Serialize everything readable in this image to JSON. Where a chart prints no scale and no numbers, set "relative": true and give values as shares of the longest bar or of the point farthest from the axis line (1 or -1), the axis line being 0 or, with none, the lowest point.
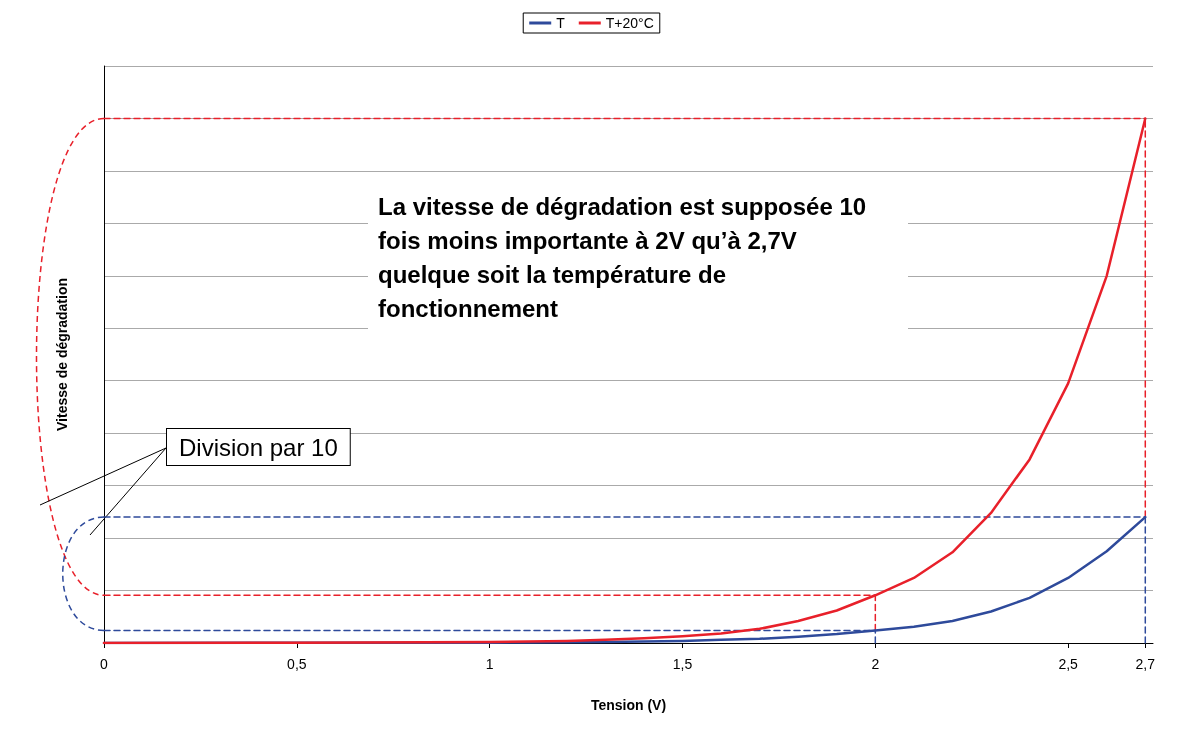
{
  "chart_data": {
    "type": "line",
    "xlabel": "Tension (V)",
    "ylabel": "Vitesse de dégradation",
    "relative": true,
    "grid": "y",
    "legend": "top",
    "marker": "none",
    "line_style": "solid",
    "xlim": [
      0,
      2.72
    ],
    "xticks": [
      0,
      {
        "value": 0.5,
        "label": "0,5"
      },
      1,
      {
        "value": 1.5,
        "label": "1,5"
      },
      2,
      {
        "value": 2.5,
        "label": "2,5"
      },
      {
        "value": 2.7,
        "label": "2,7"
      }
    ],
    "annotations": [
      "La vitesse de dégradation est supposée 10 fois moins importante à 2V qu’à 2,7V quelque soit la température de fonctionnement",
      "Division par 10"
    ],
    "series": [
      {
        "name": "T",
        "color": "#2e4a9b",
        "x": [
          0,
          1,
          1.1,
          1.2,
          1.3,
          1.4,
          1.5,
          1.6,
          1.7,
          1.8,
          1.9,
          2,
          2.1,
          2.2,
          2.3,
          2.4,
          2.5,
          2.6,
          2.7
        ],
        "values": [
          0,
          0.0007,
          0.001,
          0.0015,
          0.002,
          0.003,
          0.004,
          0.006,
          0.008,
          0.012,
          0.017,
          0.024,
          0.031,
          0.042,
          0.06,
          0.086,
          0.124,
          0.175,
          0.24
        ]
      },
      {
        "name": "T+20°C",
        "color": "#e8202a",
        "x": [
          0,
          0.5,
          1,
          1.1,
          1.2,
          1.3,
          1.4,
          1.5,
          1.6,
          1.7,
          1.8,
          1.9,
          2,
          2.1,
          2.2,
          2.3,
          2.4,
          2.5,
          2.6,
          2.7
        ],
        "values": [
          0,
          0.0005,
          0.002,
          0.003,
          0.004,
          0.006,
          0.009,
          0.013,
          0.018,
          0.027,
          0.042,
          0.062,
          0.091,
          0.124,
          0.173,
          0.248,
          0.35,
          0.495,
          0.7,
          1
        ]
      },
      {
        "color": "#e8202a",
        "line_style": "dashed",
        "x": [
          0,
          2.7
        ],
        "values": [
          1,
          1
        ]
      },
      {
        "color": "#e8202a",
        "line_style": "dashed",
        "x": [
          2.7,
          2.7
        ],
        "values": [
          0.24,
          1
        ]
      },
      {
        "color": "#e8202a",
        "line_style": "dashed",
        "x": [
          0,
          2
        ],
        "values": [
          0.091,
          0.091
        ]
      },
      {
        "color": "#e8202a",
        "line_style": "dashed",
        "x": [
          2,
          2
        ],
        "values": [
          0.024,
          0.091
        ]
      },
      {
        "color": "#2e4a9b",
        "line_style": "dashed",
        "x": [
          0,
          2.7
        ],
        "values": [
          0.24,
          0.24
        ]
      },
      {
        "color": "#2e4a9b",
        "line_style": "dashed",
        "x": [
          2.7,
          2.7
        ],
        "values": [
          0,
          0.24
        ]
      },
      {
        "color": "#2e4a9b",
        "line_style": "dashed",
        "x": [
          0,
          2
        ],
        "values": [
          0.024,
          0.024
        ]
      },
      {
        "color": "#2e4a9b",
        "line_style": "dashed",
        "x": [
          2,
          2
        ],
        "values": [
          0,
          0.024
        ]
      }
    ]
  }
}
